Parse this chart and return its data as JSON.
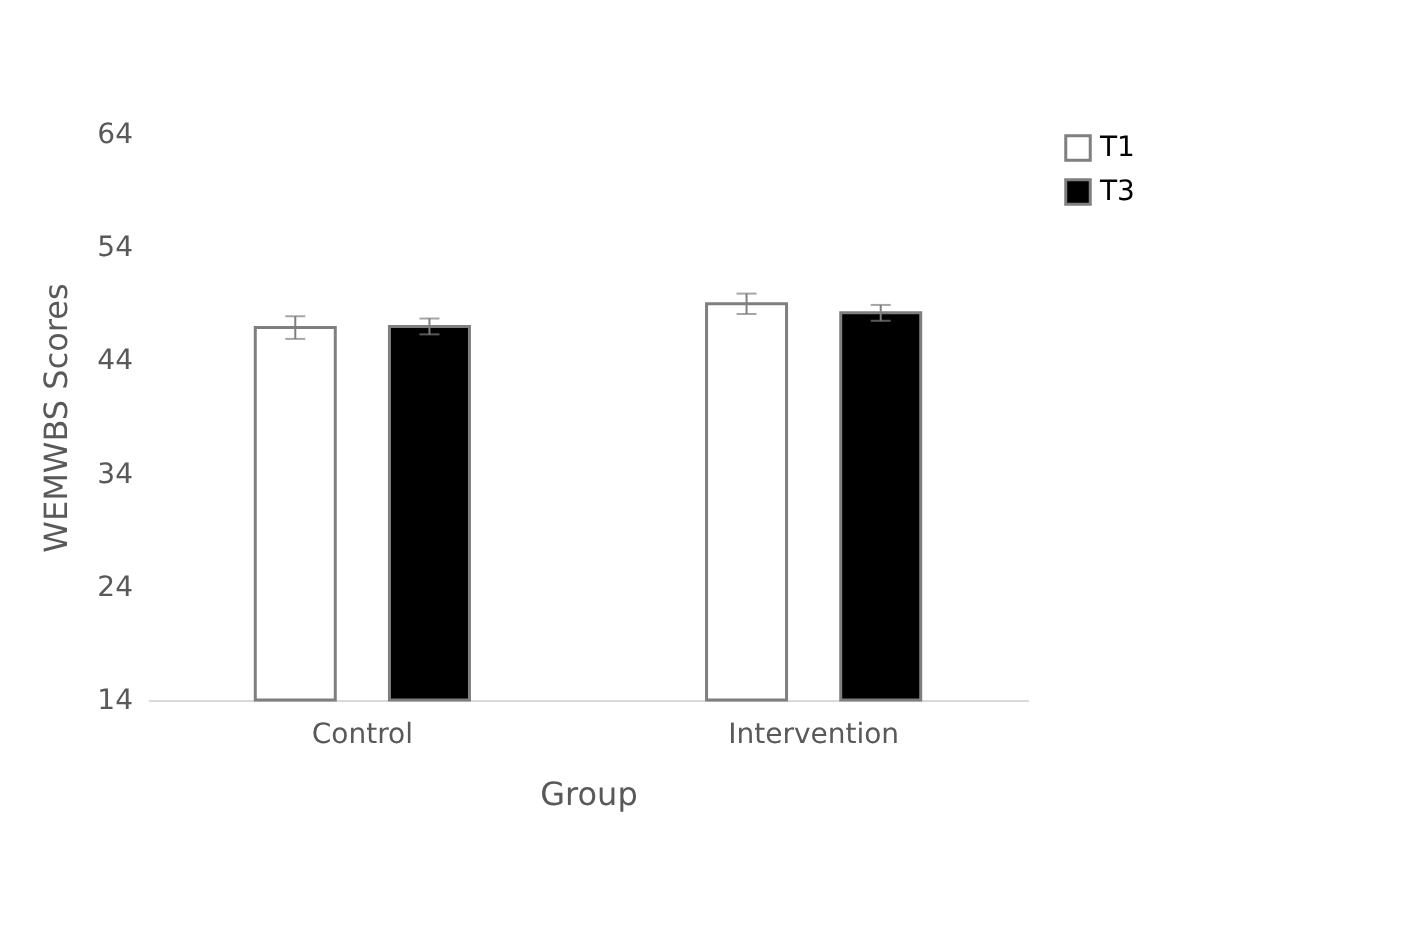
{
  "chart_data": {
    "type": "bar",
    "xlabel": "Group",
    "ylabel": "WEMWBS Scores",
    "categories": [
      "Control",
      "Intervention"
    ],
    "series": [
      {
        "name": "T1",
        "color": "#ffffff",
        "values": [
          46.9,
          49.0
        ],
        "errors": [
          1.0,
          0.9
        ]
      },
      {
        "name": "T3",
        "color": "#000000",
        "values": [
          47.0,
          48.2
        ],
        "errors": [
          0.7,
          0.7
        ]
      }
    ],
    "ylim": [
      14,
      64
    ],
    "yticks": [
      14,
      24,
      34,
      44,
      54,
      64
    ],
    "grid": false,
    "legend": "right"
  }
}
